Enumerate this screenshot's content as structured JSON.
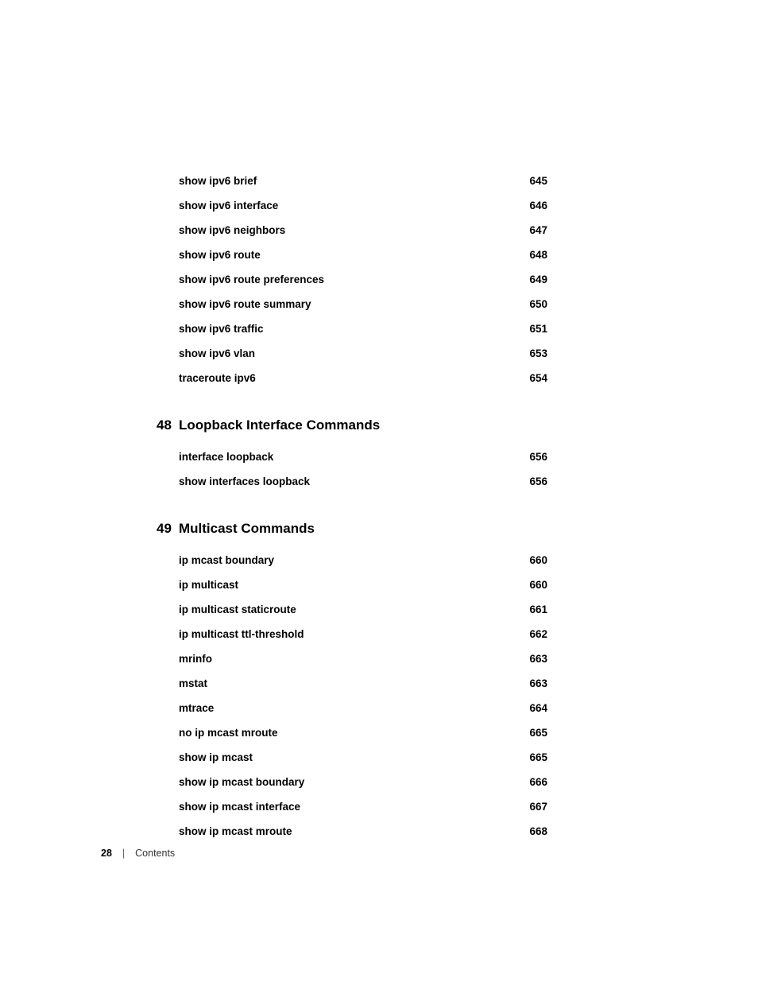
{
  "entries_group1": [
    {
      "label": "show ipv6 brief",
      "page": "645"
    },
    {
      "label": "show ipv6 interface",
      "page": "646"
    },
    {
      "label": "show ipv6 neighbors",
      "page": "647"
    },
    {
      "label": "show ipv6 route",
      "page": "648"
    },
    {
      "label": "show ipv6 route preferences",
      "page": "649"
    },
    {
      "label": "show ipv6 route summary",
      "page": "650"
    },
    {
      "label": "show ipv6 traffic",
      "page": "651"
    },
    {
      "label": "show ipv6 vlan",
      "page": "653"
    },
    {
      "label": "traceroute ipv6",
      "page": "654"
    }
  ],
  "section48": {
    "number": "48",
    "title": "Loopback Interface Commands"
  },
  "entries_group2": [
    {
      "label": "interface loopback",
      "page": "656"
    },
    {
      "label": "show interfaces loopback",
      "page": "656"
    }
  ],
  "section49": {
    "number": "49",
    "title": "Multicast Commands"
  },
  "entries_group3": [
    {
      "label": "ip mcast boundary",
      "page": "660"
    },
    {
      "label": "ip multicast",
      "page": "660"
    },
    {
      "label": "ip multicast staticroute",
      "page": "661"
    },
    {
      "label": "ip multicast ttl-threshold",
      "page": "662"
    },
    {
      "label": "mrinfo",
      "page": "663"
    },
    {
      "label": "mstat",
      "page": "663"
    },
    {
      "label": "mtrace",
      "page": "664"
    },
    {
      "label": "no ip mcast mroute",
      "page": "665"
    },
    {
      "label": "show ip mcast",
      "page": "665"
    },
    {
      "label": "show ip mcast boundary",
      "page": "666"
    },
    {
      "label": "show ip mcast interface",
      "page": "667"
    },
    {
      "label": "show ip mcast mroute",
      "page": "668"
    }
  ],
  "footer": {
    "page": "28",
    "divider": "|",
    "label": "Contents"
  }
}
